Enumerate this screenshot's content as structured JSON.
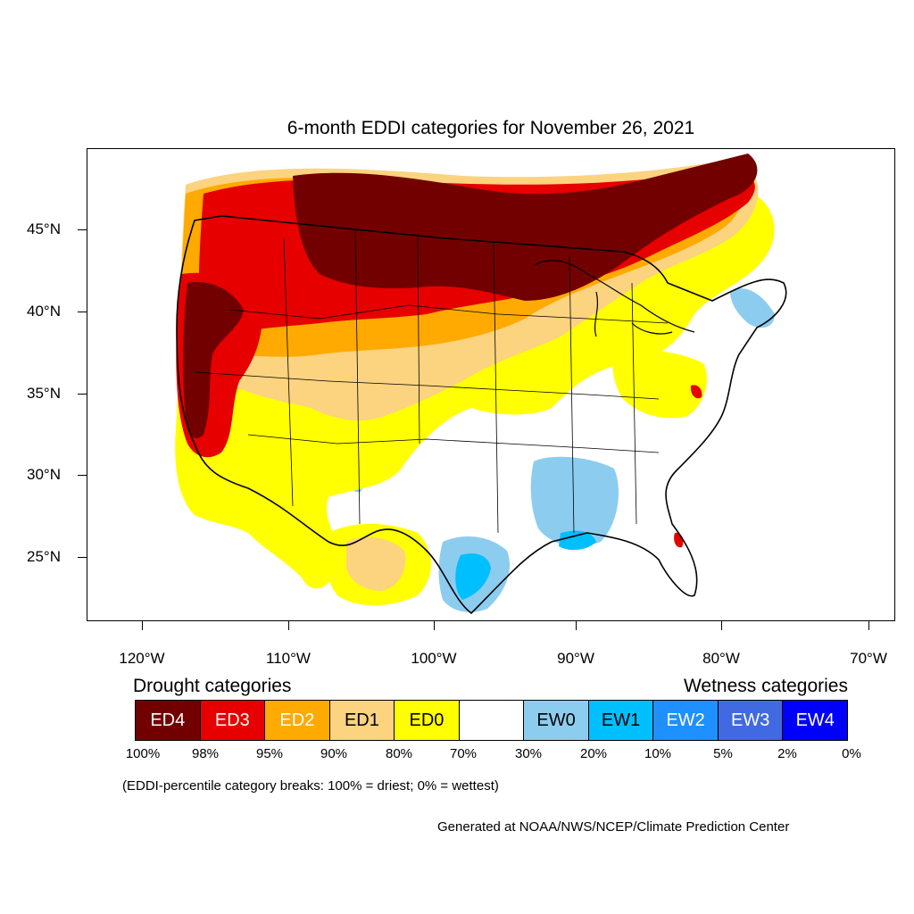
{
  "map": {
    "title": "6-month EDDI categories for November 26, 2021",
    "lat_labels": [
      "45°N",
      "40°N",
      "35°N",
      "30°N",
      "25°N"
    ],
    "lon_labels": [
      "120°W",
      "110°W",
      "100°W",
      "90°W",
      "80°W",
      "70°W"
    ]
  },
  "legend": {
    "drought_heading": "Drought categories",
    "wetness_heading": "Wetness categories",
    "categories": [
      {
        "label": "ED4",
        "color": "#730000",
        "text_color": "#ffffff"
      },
      {
        "label": "ED3",
        "color": "#e60000",
        "text_color": "#ffffff"
      },
      {
        "label": "ED2",
        "color": "#ffaa00",
        "text_color": "#ffffff"
      },
      {
        "label": "ED1",
        "color": "#fcd37f",
        "text_color": "#000000"
      },
      {
        "label": "ED0",
        "color": "#ffff00",
        "text_color": "#000000"
      },
      {
        "label": "",
        "color": "#ffffff",
        "text_color": "#000000"
      },
      {
        "label": "EW0",
        "color": "#8ccdef",
        "text_color": "#000000"
      },
      {
        "label": "EW1",
        "color": "#00bfff",
        "text_color": "#000000"
      },
      {
        "label": "EW2",
        "color": "#1e90ff",
        "text_color": "#ffffff"
      },
      {
        "label": "EW3",
        "color": "#4169e1",
        "text_color": "#ffffff"
      },
      {
        "label": "EW4",
        "color": "#0000ff",
        "text_color": "#ffffff"
      }
    ],
    "percentiles": [
      "100%",
      "98%",
      "95%",
      "90%",
      "80%",
      "70%",
      "30%",
      "20%",
      "10%",
      "5%",
      "2%",
      "0%"
    ],
    "breaks_note": "(EDDI-percentile category breaks: 100% = driest; 0% = wettest)"
  },
  "credit": "Generated at NOAA/NWS/NCEP/Climate Prediction Center"
}
